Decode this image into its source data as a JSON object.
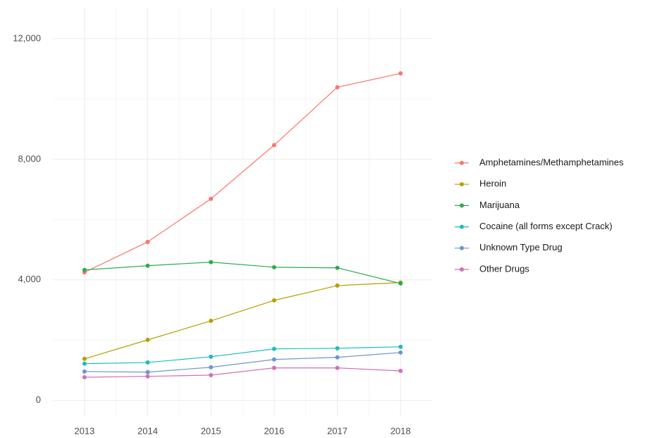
{
  "chart_data": {
    "type": "line",
    "x": [
      2013,
      2014,
      2015,
      2016,
      2017,
      2018
    ],
    "xlim": [
      2012.5,
      2018.5
    ],
    "xticks": [
      2013,
      2014,
      2015,
      2016,
      2017,
      2018
    ],
    "x_minor_ticks": [
      2013.5,
      2014.5,
      2015.5,
      2016.5,
      2017.5
    ],
    "ylim": [
      -520,
      13050
    ],
    "yticks": [
      0,
      {
        "value": 4000,
        "label": "4,000"
      },
      {
        "value": 8000,
        "label": "8,000"
      },
      {
        "value": 12000,
        "label": "12,000"
      }
    ],
    "y_minor_ticks": [
      2000,
      6000,
      10000
    ],
    "grid": true,
    "legend": "right",
    "series": [
      {
        "name": "Amphetamines/Methamphetamines",
        "color": "#F8766D",
        "values": [
          4250,
          5260,
          6690,
          8470,
          10390,
          10850
        ]
      },
      {
        "name": "Heroin",
        "color": "#B79F00",
        "values": [
          1380,
          2010,
          2640,
          3320,
          3810,
          3910
        ]
      },
      {
        "name": "Marijuana",
        "color": "#2EAB4F",
        "values": [
          4330,
          4470,
          4590,
          4420,
          4400,
          3880
        ]
      },
      {
        "name": "Cocaine (all forms except Crack)",
        "color": "#1FBCC0",
        "values": [
          1220,
          1260,
          1450,
          1710,
          1730,
          1780
        ]
      },
      {
        "name": "Unknown Type Drug",
        "color": "#6D95D0",
        "values": [
          960,
          940,
          1100,
          1360,
          1430,
          1590
        ]
      },
      {
        "name": "Other Drugs",
        "color": "#D46FB5",
        "values": [
          770,
          800,
          840,
          1080,
          1080,
          980
        ]
      }
    ]
  }
}
